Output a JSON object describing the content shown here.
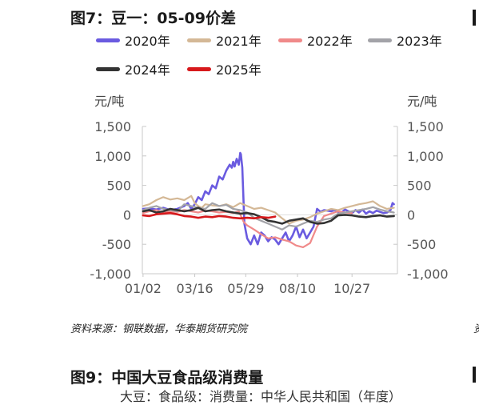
{
  "figure": {
    "title": "图7：豆一：05-09价差",
    "source": "资料来源：钢联数据，华泰期货研究院"
  },
  "next_figure": {
    "title": "图9：中国大豆食品级消费量",
    "subtitle_partial": "大豆：食品级：消费量：中华人民共和国（年度）"
  },
  "right_edge": {
    "partial_char": "资"
  },
  "chart_data": {
    "type": "line",
    "title": "图7：豆一：05-09价差",
    "ylabel_left": "元/吨",
    "ylabel_right": "元/吨",
    "xlabel": "",
    "ylim": [
      -1000,
      1500
    ],
    "yticks": [
      -1000,
      -500,
      0,
      500,
      1000,
      1500
    ],
    "yticks_left_labels": [
      "-1,000",
      "-500",
      "0",
      "500",
      "1,000",
      "1,500"
    ],
    "yticks_right_labels": [
      "-1,000",
      "-500",
      "0",
      "500",
      "1,000",
      "1,500"
    ],
    "xlim": [
      0,
      365
    ],
    "xticks": [
      {
        "day": 1,
        "label": "01/02"
      },
      {
        "day": 75,
        "label": "03/16"
      },
      {
        "day": 148,
        "label": "05/29"
      },
      {
        "day": 222,
        "label": "08/10"
      },
      {
        "day": 300,
        "label": "10/27"
      }
    ],
    "legend_position": "top",
    "grid": false,
    "series": [
      {
        "name": "2020年",
        "color": "#6a5be0",
        "x": [
          1,
          10,
          20,
          30,
          40,
          50,
          60,
          65,
          70,
          75,
          80,
          85,
          90,
          95,
          100,
          105,
          110,
          115,
          120,
          125,
          128,
          130,
          132,
          135,
          138,
          140,
          141,
          143,
          146,
          150,
          155,
          160,
          165,
          170,
          175,
          180,
          185,
          190,
          195,
          200,
          205,
          210,
          215,
          220,
          225,
          230,
          235,
          240,
          245,
          250,
          255,
          260,
          265,
          270,
          275,
          280,
          285,
          290,
          295,
          300,
          305,
          310,
          315,
          320,
          325,
          330,
          335,
          340,
          345,
          350,
          355,
          358,
          360
        ],
        "y": [
          100,
          110,
          90,
          120,
          80,
          100,
          150,
          200,
          100,
          180,
          300,
          250,
          400,
          350,
          500,
          450,
          650,
          600,
          750,
          850,
          800,
          900,
          820,
          950,
          850,
          1050,
          1030,
          800,
          -150,
          -400,
          -500,
          -350,
          -500,
          -300,
          -350,
          -450,
          -380,
          -420,
          -500,
          -400,
          -300,
          -450,
          -350,
          -200,
          -380,
          -250,
          -400,
          -300,
          -200,
          100,
          50,
          80,
          70,
          60,
          80,
          50,
          40,
          90,
          60,
          30,
          80,
          40,
          90,
          20,
          60,
          30,
          70,
          50,
          30,
          40,
          80,
          200,
          180
        ]
      },
      {
        "name": "2021年",
        "color": "#d4b896",
        "x": [
          1,
          10,
          20,
          30,
          40,
          50,
          60,
          70,
          75,
          80,
          85,
          90,
          100,
          110,
          120,
          130,
          140,
          150,
          160,
          170,
          180,
          190,
          200,
          210,
          220,
          230,
          240,
          250,
          260,
          270,
          280,
          290,
          300,
          310,
          320,
          330,
          340,
          350,
          360
        ],
        "y": [
          150,
          180,
          250,
          300,
          260,
          280,
          250,
          320,
          200,
          150,
          120,
          180,
          160,
          150,
          180,
          130,
          200,
          150,
          100,
          120,
          80,
          40,
          -60,
          -150,
          -100,
          -80,
          -40,
          20,
          60,
          100,
          80,
          120,
          150,
          180,
          200,
          230,
          150,
          100,
          120
        ]
      },
      {
        "name": "2022年",
        "color": "#f08a8a",
        "x": [
          1,
          10,
          20,
          30,
          40,
          50,
          60,
          70,
          80,
          90,
          100,
          110,
          120,
          130,
          138,
          145,
          150,
          160,
          170,
          180,
          190,
          200,
          210,
          220,
          230,
          240,
          250,
          260,
          270,
          280,
          290,
          300
        ],
        "y": [
          30,
          60,
          80,
          40,
          60,
          50,
          80,
          60,
          40,
          70,
          60,
          40,
          50,
          30,
          60,
          -120,
          -180,
          -250,
          -330,
          -400,
          -380,
          -420,
          -450,
          -520,
          -550,
          -480,
          -200,
          -20,
          20,
          60,
          40,
          30
        ]
      },
      {
        "name": "2023年",
        "color": "#a3a3a8",
        "x": [
          1,
          10,
          20,
          30,
          40,
          50,
          60,
          70,
          80,
          90,
          100,
          110,
          120,
          130,
          140,
          150,
          160,
          170,
          180,
          190,
          200,
          210,
          220,
          230,
          240,
          250,
          260,
          270,
          280,
          290,
          300,
          310,
          320,
          330,
          340,
          350,
          360
        ],
        "y": [
          80,
          120,
          150,
          100,
          80,
          60,
          180,
          150,
          120,
          100,
          200,
          150,
          170,
          100,
          80,
          40,
          -50,
          -100,
          -150,
          -200,
          -250,
          -180,
          -200,
          -150,
          -100,
          -120,
          -80,
          -60,
          20,
          40,
          60,
          80,
          100,
          130,
          90,
          60,
          40
        ]
      },
      {
        "name": "2024年",
        "color": "#333333",
        "x": [
          1,
          10,
          20,
          30,
          40,
          50,
          60,
          70,
          80,
          90,
          100,
          110,
          120,
          130,
          140,
          150,
          160,
          170,
          180,
          190,
          200,
          210,
          220,
          230,
          240,
          250,
          260,
          270,
          280,
          290,
          300,
          310,
          320,
          330,
          340,
          350,
          360
        ],
        "y": [
          60,
          80,
          40,
          60,
          100,
          80,
          60,
          80,
          120,
          60,
          80,
          90,
          60,
          40,
          20,
          30,
          10,
          -40,
          -100,
          -120,
          -150,
          -100,
          -80,
          -60,
          -120,
          -150,
          -140,
          -100,
          -10,
          0,
          -10,
          -30,
          -40,
          -20,
          -10,
          -30,
          -20
        ]
      },
      {
        "name": "2025年",
        "color": "#d7191c",
        "x": [
          1,
          10,
          20,
          30,
          40,
          50,
          60,
          70,
          80,
          90,
          100,
          110,
          120,
          130,
          140,
          150,
          160,
          170,
          180,
          190
        ],
        "y": [
          -10,
          -20,
          10,
          20,
          30,
          10,
          -20,
          -30,
          -50,
          -30,
          -40,
          -20,
          -30,
          -50,
          -60,
          -50,
          -60,
          -40,
          -50,
          -30
        ]
      }
    ]
  }
}
